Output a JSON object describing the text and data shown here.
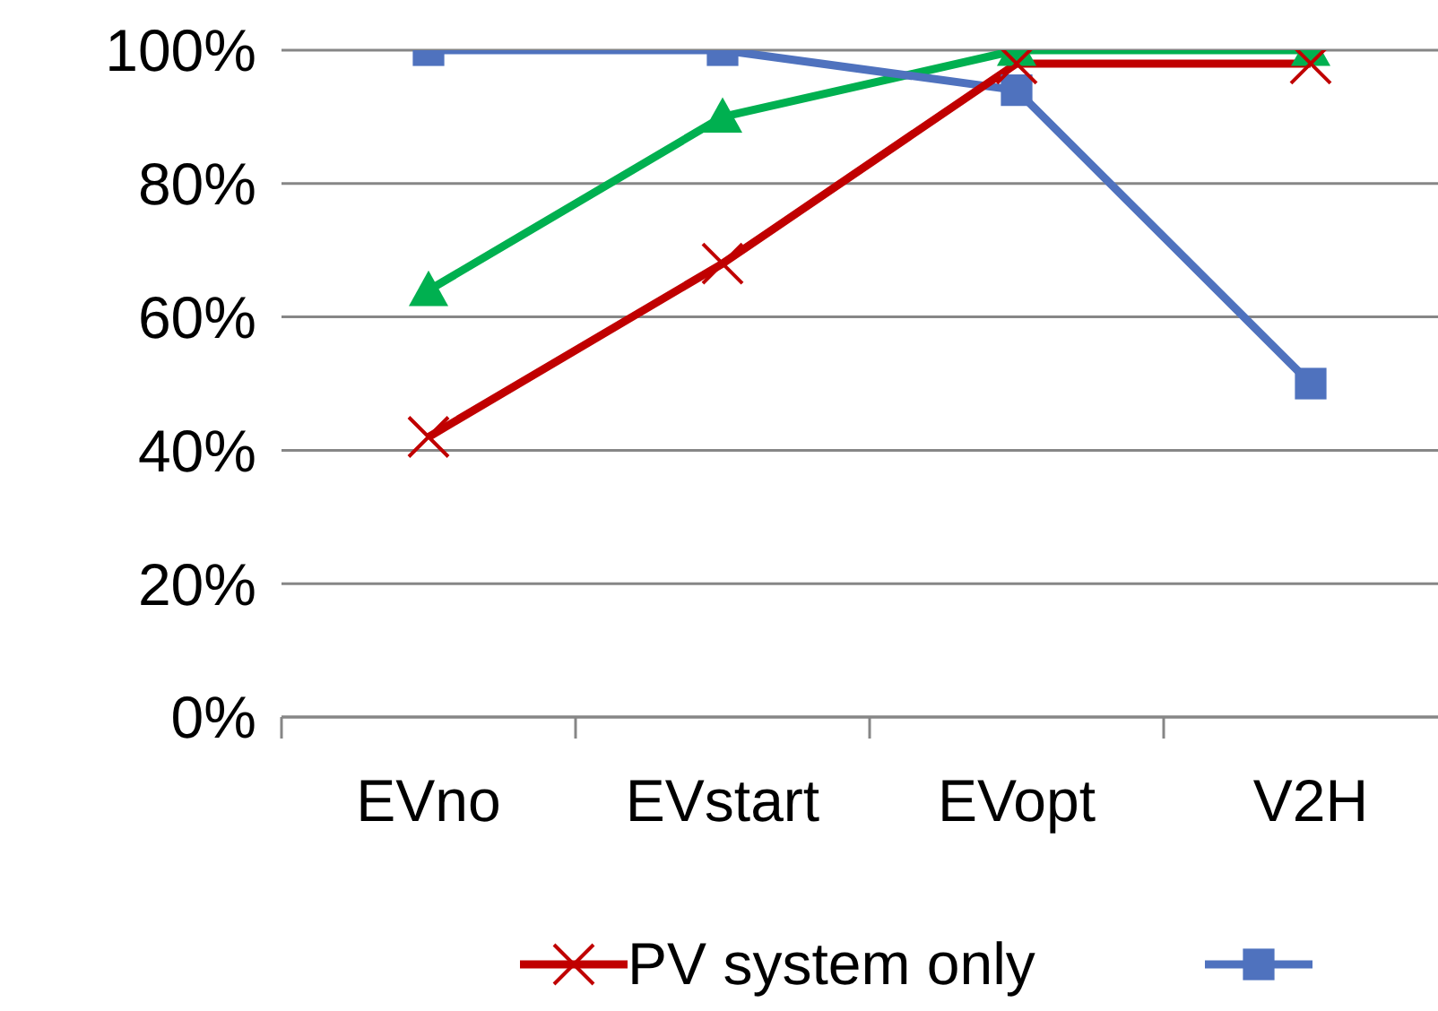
{
  "chart_data": {
    "type": "line",
    "categories": [
      "EVno",
      "EVstart",
      "EVopt",
      "V2H"
    ],
    "series": [
      {
        "name": "PV system only",
        "color": "#c00000",
        "marker": "cross",
        "values": [
          42,
          68,
          98,
          98
        ]
      },
      {
        "color": "#4f72be",
        "marker": "square",
        "values": [
          100,
          100,
          94,
          50
        ]
      },
      {
        "color": "#00b050",
        "marker": "triangle",
        "values": [
          64,
          90,
          100,
          100
        ]
      }
    ],
    "ylim": [
      0,
      100
    ],
    "yticks": [
      {
        "value": 0,
        "label": "0%"
      },
      {
        "value": 20,
        "label": "20%"
      },
      {
        "value": 40,
        "label": "40%"
      },
      {
        "value": 60,
        "label": "60%"
      },
      {
        "value": 80,
        "label": "80%"
      },
      {
        "value": 100,
        "label": "100%"
      }
    ],
    "grid": "y",
    "legend": "bottom"
  }
}
